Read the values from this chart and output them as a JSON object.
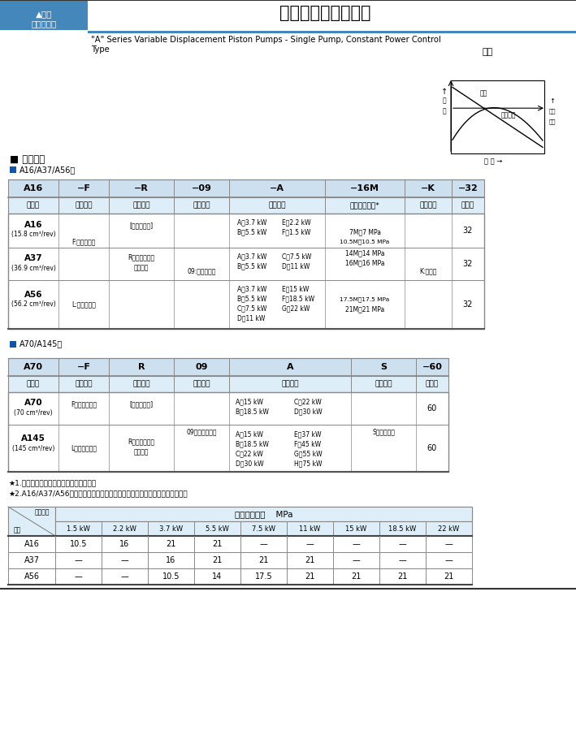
{
  "bg_color": "#ffffff",
  "header_blue": "#cce0f0",
  "light_blue": "#deeef8",
  "table_border": "#888888",
  "title_main": "单泵、恒功率控制型",
  "title_en": "\"A\" Series Variable Displacement Piston Pumps - Single Pump, Constant Power Control Type",
  "char_title": "特性",
  "flow_label": "流量",
  "flow_arrow": "↑",
  "power_label1": "输入功率",
  "power_label2": "↑",
  "power_label3": "输入",
  "power_label4": "功率",
  "pressure_label": "压 力 →",
  "flow_curve_label": "流量",
  "power_curve_label": "输入功率",
  "type_title": "■ 型号说明",
  "type1_label": "A16/A37/A56型",
  "type2_label": "A70/A145型",
  "table1_headers": [
    "A16",
    "−F",
    "−R",
    "−09",
    "−A",
    "−16M",
    "−K",
    "−32"
  ],
  "table1_subheaders": [
    "系列号",
    "安装型式",
    "旋转方向",
    "控制型式",
    "功率特性",
    "指定控制压力*",
    "轴伸形状",
    "设计号"
  ],
  "t1_col_w": [
    62,
    62,
    80,
    68,
    118,
    98,
    58,
    40
  ],
  "t1_row1_model": "A16",
  "t1_row1_disp": "(15.8 cm³/rev)",
  "t1_row2_model": "A37",
  "t1_row2_disp": "(36.9 cm³/rev)",
  "t1_row3_model": "A56",
  "t1_row3_disp": "(56.2 cm³/rev)",
  "t1_install_f": "F:法兰安装型",
  "t1_install_l": "L:底座安装型",
  "t1_dir1": "[从轴伸端看]",
  "t1_dir2": "R：顺时针方向",
  "t1_dir3": "（标准）",
  "t1_ctrl": "09:恒定功率型",
  "t1_pow_r1": [
    [
      "A：3.7 kW",
      "E：2.2 kW"
    ],
    [
      "B：5.5 kW",
      "F：1.5 kW"
    ]
  ],
  "t1_pow_r2": [
    [
      "A：3.7 kW",
      "C：7.5 kW"
    ],
    [
      "B：5.5 kW",
      "D：11 kW"
    ]
  ],
  "t1_pow_r3": [
    [
      "A：3.7 kW",
      "E：15 kW"
    ],
    [
      "B：5.5 kW",
      "F：18.5 kW"
    ],
    [
      "C：7.5 kW",
      "G：22 kW"
    ],
    [
      "D：11 kW",
      ""
    ]
  ],
  "t1_press_r1": [
    "7M：7 MPa",
    "10.5M：10.5 MPa"
  ],
  "t1_press_r2": [
    "14M：14 MPa",
    "16M：16 MPa"
  ],
  "t1_press_r3": [
    "17.5M：17.5 MPa",
    "21M：21 MPa"
  ],
  "t1_shaft": "K:平键型",
  "t1_design": "32",
  "table2_headers": [
    "A70",
    "−F",
    "R",
    "09",
    "A",
    "S",
    "−60"
  ],
  "table2_subheaders": [
    "系列号",
    "安装型式",
    "旋转方向",
    "控制型式",
    "功率特性",
    "接口方向",
    "设计号"
  ],
  "t2_col_w": [
    62,
    62,
    80,
    68,
    150,
    80,
    40
  ],
  "t2_row1_model": "A70",
  "t2_row1_disp": "(70 cm³/rev)",
  "t2_row2_model": "A145",
  "t2_row2_disp": "(145 cm³/rev)",
  "t2_install_f": "F：法兰安装型",
  "t2_install_l": "L：底座安装型",
  "t2_dir1": "[从轴伸端看]",
  "t2_dir2": "R：顺时针方向",
  "t2_dir3": "（标准）",
  "t2_ctrl": "09：恒定功率型",
  "t2_pow_r1": [
    [
      "A：15 kW",
      "C：22 kW"
    ],
    [
      "B：18.5 kW",
      "D：30 kW"
    ]
  ],
  "t2_pow_r2": [
    [
      "A：15 kW",
      "E：37 kW"
    ],
    [
      "B：18.5 kW",
      "F：45 kW"
    ],
    [
      "C：22 kW",
      "G：55 kW"
    ],
    [
      "D：30 kW",
      "H：75 kW"
    ]
  ],
  "t2_iface": "S：侧面接口",
  "t2_design": "60",
  "note1": "★1.可提供逆时针型，详情请和我们联系。",
  "note2": "★2.A16/A37/A56型的控制压力要指定不高于下表功率特性的最高工作压力值。",
  "pt_head1": "功率特性",
  "pt_head2": "最高工作压力    MPa",
  "pt_type_label": "型号",
  "pt_cols": [
    "1.5 kW",
    "2.2 kW",
    "3.7 kW",
    "5.5 kW",
    "7.5 kW",
    "11 kW",
    "15 kW",
    "18.5 kW",
    "22 kW"
  ],
  "pt_data": [
    [
      "A16",
      "10.5",
      "16",
      "21",
      "21",
      "—",
      "—",
      "—",
      "—",
      "—"
    ],
    [
      "A37",
      "—",
      "—",
      "16",
      "21",
      "21",
      "21",
      "—",
      "—",
      "—"
    ],
    [
      "A56",
      "—",
      "—",
      "10.5",
      "14",
      "17.5",
      "21",
      "21",
      "21",
      "21"
    ]
  ]
}
